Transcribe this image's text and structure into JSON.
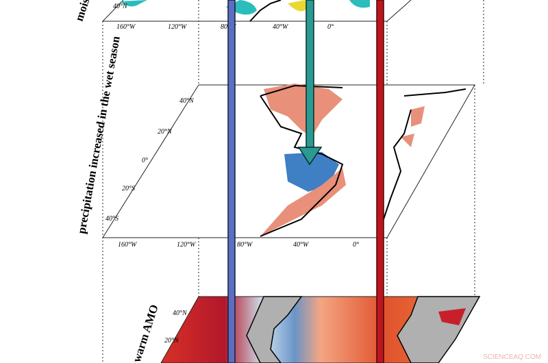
{
  "panels": {
    "top": {
      "label": "mois",
      "lat_ticks": [
        "40°N"
      ],
      "lon_ticks": [
        "160°W",
        "120°W",
        "80°W",
        "40°W",
        "0°"
      ]
    },
    "middle": {
      "label": "precipitation increased in the wet season",
      "lat_ticks": [
        "40°N",
        "20°N",
        "0°",
        "20°S",
        "40°S"
      ],
      "lon_ticks": [
        "160°W",
        "120°W",
        "80°W",
        "40°W",
        "0°"
      ]
    },
    "bottom": {
      "label": "warm AMO",
      "lat_ticks": [
        "40°N",
        "20°N"
      ]
    }
  },
  "arrows": [
    {
      "name": "blue",
      "color": "#5b6fc0"
    },
    {
      "name": "teal",
      "color": "#2a9a92"
    },
    {
      "name": "red",
      "color": "#c0141c"
    }
  ],
  "colors": {
    "warm": "#d73027",
    "cool": "#4575b4",
    "land_gray": "#b0b0b0",
    "moisture": "#2bbcbc",
    "dry": "#e8d830"
  },
  "watermark": "SCIENCEAQ.COM"
}
